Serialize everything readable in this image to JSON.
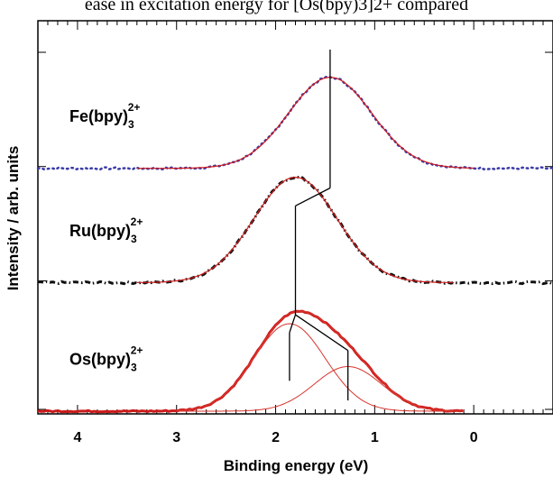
{
  "caption": "ease in excitation energy for [Os(bpy)3]2+ compared",
  "chart_data": {
    "type": "line",
    "title": "",
    "xlabel": "Binding energy (eV)",
    "ylabel": "Intensity / arb. units",
    "xlim": [
      4.4,
      -0.8
    ],
    "x_reversed": true,
    "x_ticks": [
      4,
      3,
      2,
      1,
      0
    ],
    "x_tick_labels": [
      "4",
      "3",
      "2",
      "1",
      "0"
    ],
    "ylim": [
      0,
      1
    ],
    "grid": false,
    "legend": "none",
    "series": [
      {
        "name": "Fe(bpy)3 2+",
        "label_main": "Fe(bpy)",
        "label_sub": "3",
        "label_sup": "2+",
        "offset": 0.68,
        "data_color": "#3a3aa8",
        "data_style": "dotted",
        "fit_color": "#d01c1c",
        "data_range": [
          4.4,
          -0.8
        ],
        "fit_range": [
          3.4,
          0.0
        ],
        "peak_center": 1.45,
        "peak_height": 0.255,
        "peak_width": 0.42,
        "marker_x": 1.45
      },
      {
        "name": "Ru(bpy)3 2+",
        "label_main": "Ru(bpy)",
        "label_sub": "3",
        "label_sup": "2+",
        "offset": 0.36,
        "data_color": "#111111",
        "data_style": "dash-dot",
        "fit_color": "#d01c1c",
        "data_range": [
          4.4,
          -0.8
        ],
        "fit_range": [
          3.4,
          0.2
        ],
        "peak_center": 1.8,
        "peak_height": 0.295,
        "peak_width": 0.42,
        "marker_x": 1.8
      },
      {
        "name": "Os(bpy)3 2+",
        "label_main": "Os(bpy)",
        "label_sub": "3",
        "label_sup": "2+",
        "offset": 0.0,
        "data_color": "#cc1a1a",
        "data_style": "thick",
        "fit_color": "#d8342c",
        "data_range": [
          4.4,
          0.1
        ],
        "fit_range": [
          3.0,
          0.1
        ],
        "components": [
          {
            "center": 1.86,
            "height": 0.245,
            "width": 0.36
          },
          {
            "center": 1.27,
            "height": 0.125,
            "width": 0.34
          }
        ],
        "marker_x": [
          1.86,
          1.27
        ]
      }
    ]
  }
}
